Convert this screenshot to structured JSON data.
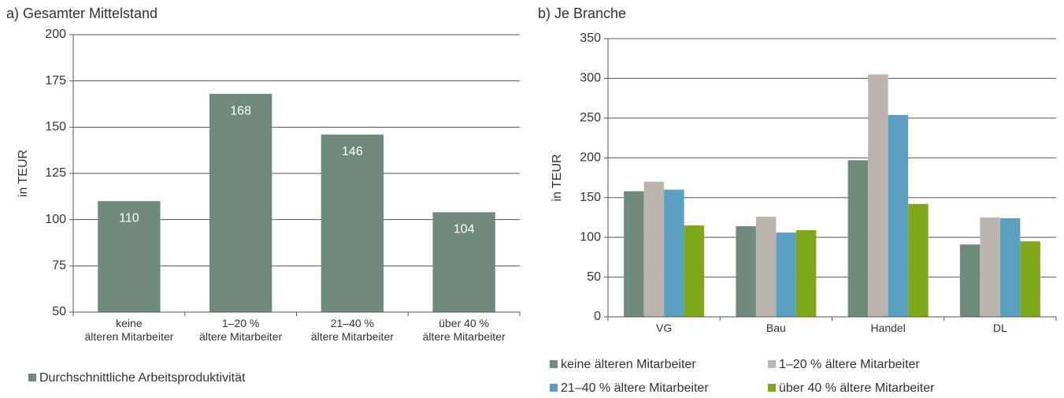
{
  "chart_data": [
    {
      "type": "bar",
      "title": "a) Gesamter Mittelstand",
      "y_label": "in TEUR",
      "categories": [
        "keine\nälteren Mitarbeiter",
        "1–20 %\nältere Mitarbeiter",
        "21–40 %\nältere Mitarbeiter",
        "über 40 %\nältere Mitarbeiter"
      ],
      "series": [
        {
          "name": "Durchschnittliche Arbeitsproduktivität",
          "color": "#6f8b7c",
          "values": [
            110,
            168,
            146,
            104
          ]
        }
      ],
      "ylim": [
        50,
        200
      ],
      "yticks": [
        50,
        75,
        100,
        125,
        150,
        175,
        200
      ],
      "grid": true,
      "data_labels": true
    },
    {
      "type": "grouped_bar",
      "title": "b) Je Branche",
      "y_label": "in TEUR",
      "categories": [
        "VG",
        "Bau",
        "Handel",
        "DL"
      ],
      "series": [
        {
          "name": "keine älteren Mitarbeiter",
          "color": "#6f8b7c",
          "values": [
            158,
            114,
            197,
            91
          ]
        },
        {
          "name": "1–20 % ältere Mitarbeiter",
          "color": "#bcb5ae",
          "values": [
            170,
            126,
            305,
            125
          ]
        },
        {
          "name": "21–40 % ältere Mitarbeiter",
          "color": "#5b9fc2",
          "values": [
            160,
            106,
            254,
            124
          ]
        },
        {
          "name": "über 40 % ältere Mitarbeiter",
          "color": "#7fa819",
          "values": [
            115,
            109,
            142,
            95
          ]
        }
      ],
      "ylim": [
        0,
        350
      ],
      "yticks": [
        0,
        50,
        100,
        150,
        200,
        250,
        300,
        350
      ],
      "grid": true,
      "data_labels": false
    }
  ]
}
